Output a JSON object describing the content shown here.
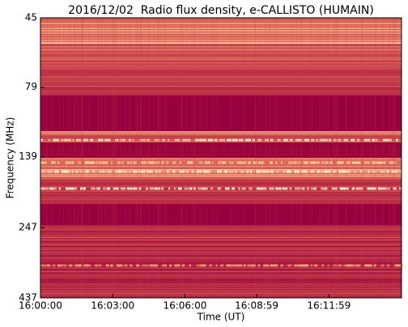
{
  "chart_data": {
    "type": "spectrogram",
    "title": "2016/12/02  Radio flux density, e-CALLISTO (HUMAIN)",
    "xlabel": "Time (UT)",
    "ylabel": "Frequency (MHz)",
    "xlim": [
      0,
      900
    ],
    "xticks": [
      {
        "value": 0,
        "label": "16:00:00"
      },
      {
        "value": 180,
        "label": "16:03:00"
      },
      {
        "value": 360,
        "label": "16:06:00"
      },
      {
        "value": 539,
        "label": "16:08:59"
      },
      {
        "value": 719,
        "label": "16:11:59"
      }
    ],
    "ylim": [
      45,
      437
    ],
    "yscale": "log",
    "yinverted": true,
    "yticks": [
      45,
      79,
      139,
      247,
      437
    ]
  }
}
